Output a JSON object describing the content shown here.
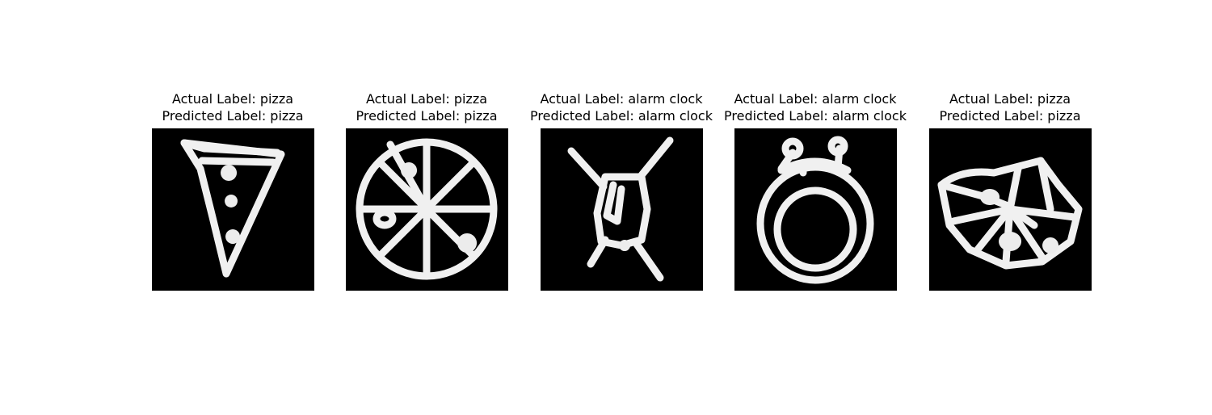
{
  "panels": [
    {
      "actual": "Actual Label: pizza",
      "predicted": "Predicted Label: pizza",
      "image_icon": "pizza-slice-sketch"
    },
    {
      "actual": "Actual Label: pizza",
      "predicted": "Predicted Label: pizza",
      "image_icon": "whole-pizza-sketch"
    },
    {
      "actual": "Actual Label: alarm clock",
      "predicted": "Predicted Label: alarm clock",
      "image_icon": "alarm-clock-sketch"
    },
    {
      "actual": "Actual Label: alarm clock",
      "predicted": "Predicted Label: alarm clock",
      "image_icon": "alarm-clock-sketch"
    },
    {
      "actual": "Actual Label: pizza",
      "predicted": "Predicted Label: pizza",
      "image_icon": "pizza-sketch"
    }
  ],
  "colors": {
    "background": "#ffffff",
    "image_background": "#000000",
    "stroke": "#f0f0f0",
    "text": "#000000"
  }
}
